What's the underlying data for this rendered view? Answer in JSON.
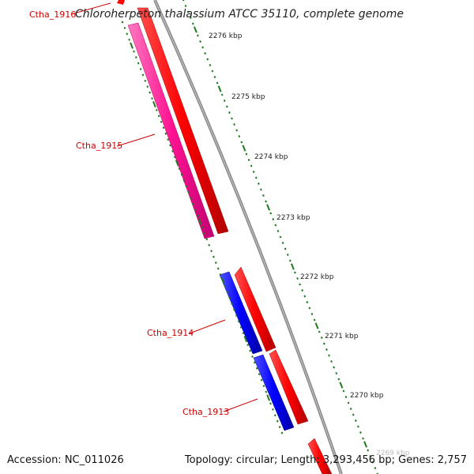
{
  "title": "Chloroherpeton thalassium ATCC 35110, complete genome",
  "footer": {
    "accession": "Accession: NC_011026",
    "summary": "Topology: circular; Length: 3,293,456 bp; Genes: 2,757"
  },
  "genes": [
    {
      "label": "Ctha_1916"
    },
    {
      "label": "Ctha_1915"
    },
    {
      "label": "Ctha_1914"
    },
    {
      "label": "Ctha_1913"
    }
  ],
  "ticks": [
    {
      "label": "2276 kbp"
    },
    {
      "label": "2275 kbp"
    },
    {
      "label": "2274 kbp"
    },
    {
      "label": "2273 kbp"
    },
    {
      "label": "2272 kbp"
    },
    {
      "label": "2271 kbp"
    },
    {
      "label": "2270 kbp"
    },
    {
      "label": "2269 kbp"
    }
  ],
  "colors": {
    "backbone": "#808080",
    "forward_cds": "#ff0000",
    "reverse_cds": "#ff1493",
    "reverse_cds_2": "#0000ff",
    "ticks": "#1f7a1f",
    "gene_label": "#cc0000"
  }
}
